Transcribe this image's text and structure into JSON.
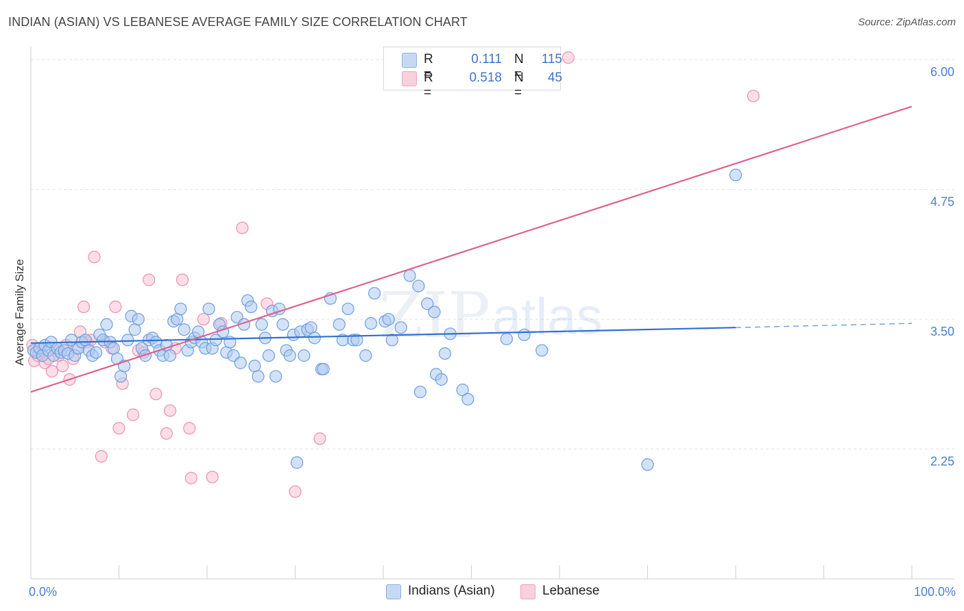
{
  "header": {
    "title": "INDIAN (ASIAN) VS LEBANESE AVERAGE FAMILY SIZE CORRELATION CHART",
    "source": "Source: ZipAtlas.com"
  },
  "legend": {
    "series1": {
      "r_label": "R =",
      "r_value": "0.111",
      "n_label": "N =",
      "n_value": "115"
    },
    "series2": {
      "r_label": "R =",
      "r_value": "0.518",
      "n_label": "N =",
      "n_value": "45"
    }
  },
  "bottom_legend": {
    "series1": "Indians (Asian)",
    "series2": "Lebanese"
  },
  "watermark": {
    "zip": "ZIP",
    "atlas": "atlas"
  },
  "colors": {
    "blue_fill": "#aecbf0",
    "blue_stroke": "#6c9ee0",
    "blue_line": "#2f6fd0",
    "pink_fill": "#f7c3d3",
    "pink_stroke": "#ec90ad",
    "pink_line": "#e0608b",
    "tick_text": "#4a7fd1"
  },
  "chart_data": {
    "type": "scatter",
    "title": "INDIAN (ASIAN) VS LEBANESE AVERAGE FAMILY SIZE CORRELATION CHART",
    "xlabel": "",
    "ylabel": "Average Family Size",
    "xlim": [
      0,
      100
    ],
    "ylim": [
      1.0,
      6.1
    ],
    "x_tick_labels": [
      "0.0%",
      "100.0%"
    ],
    "y_ticks": [
      2.25,
      3.5,
      4.75,
      6.0
    ],
    "y_tick_labels": [
      "2.25",
      "3.50",
      "4.75",
      "6.00"
    ],
    "grid": true,
    "series": [
      {
        "name": "Indians (Asian)",
        "color": "#6c9ee0",
        "r": 0.111,
        "n": 115,
        "trend": {
          "x": [
            0,
            80
          ],
          "y": [
            3.27,
            3.42
          ],
          "dashed_extension_to_x": 100,
          "dashed_end_y": 3.46
        },
        "points": [
          [
            0.3,
            3.2
          ],
          [
            0.6,
            3.18
          ],
          [
            1.0,
            3.22
          ],
          [
            1.3,
            3.15
          ],
          [
            1.6,
            3.25
          ],
          [
            2.0,
            3.2
          ],
          [
            2.3,
            3.28
          ],
          [
            2.6,
            3.15
          ],
          [
            3.0,
            3.22
          ],
          [
            3.4,
            3.18
          ],
          [
            3.8,
            3.2
          ],
          [
            4.2,
            3.17
          ],
          [
            4.6,
            3.3
          ],
          [
            5.0,
            3.15
          ],
          [
            5.4,
            3.22
          ],
          [
            5.8,
            3.28
          ],
          [
            6.2,
            3.3
          ],
          [
            6.6,
            3.2
          ],
          [
            7.0,
            3.15
          ],
          [
            7.4,
            3.18
          ],
          [
            7.8,
            3.35
          ],
          [
            8.2,
            3.3
          ],
          [
            8.6,
            3.45
          ],
          [
            9.0,
            3.28
          ],
          [
            9.4,
            3.22
          ],
          [
            9.8,
            3.12
          ],
          [
            10.2,
            2.95
          ],
          [
            10.6,
            3.05
          ],
          [
            11.0,
            3.3
          ],
          [
            11.4,
            3.53
          ],
          [
            11.8,
            3.4
          ],
          [
            12.2,
            3.5
          ],
          [
            12.6,
            3.22
          ],
          [
            13.0,
            3.15
          ],
          [
            13.4,
            3.3
          ],
          [
            13.8,
            3.32
          ],
          [
            14.2,
            3.28
          ],
          [
            14.6,
            3.2
          ],
          [
            15.0,
            3.15
          ],
          [
            15.4,
            3.25
          ],
          [
            15.8,
            3.15
          ],
          [
            16.2,
            3.48
          ],
          [
            16.6,
            3.5
          ],
          [
            17.0,
            3.6
          ],
          [
            17.4,
            3.4
          ],
          [
            17.8,
            3.2
          ],
          [
            18.2,
            3.28
          ],
          [
            18.6,
            3.32
          ],
          [
            19.0,
            3.38
          ],
          [
            19.4,
            3.28
          ],
          [
            19.8,
            3.22
          ],
          [
            20.2,
            3.6
          ],
          [
            20.6,
            3.22
          ],
          [
            21.0,
            3.3
          ],
          [
            21.4,
            3.45
          ],
          [
            21.8,
            3.38
          ],
          [
            22.2,
            3.18
          ],
          [
            22.6,
            3.28
          ],
          [
            23.0,
            3.15
          ],
          [
            23.4,
            3.52
          ],
          [
            23.8,
            3.08
          ],
          [
            24.2,
            3.45
          ],
          [
            24.6,
            3.68
          ],
          [
            25.0,
            3.62
          ],
          [
            25.4,
            3.05
          ],
          [
            25.8,
            2.95
          ],
          [
            26.2,
            3.45
          ],
          [
            26.6,
            3.32
          ],
          [
            27.0,
            3.15
          ],
          [
            27.4,
            3.58
          ],
          [
            27.8,
            2.95
          ],
          [
            28.2,
            3.6
          ],
          [
            28.6,
            3.45
          ],
          [
            29.0,
            3.2
          ],
          [
            29.4,
            3.15
          ],
          [
            29.8,
            3.35
          ],
          [
            30.2,
            2.12
          ],
          [
            30.6,
            3.38
          ],
          [
            31.0,
            3.15
          ],
          [
            31.4,
            3.4
          ],
          [
            31.8,
            3.42
          ],
          [
            32.2,
            3.32
          ],
          [
            33.0,
            3.02
          ],
          [
            33.2,
            3.02
          ],
          [
            34.0,
            3.7
          ],
          [
            35.0,
            3.45
          ],
          [
            35.4,
            3.3
          ],
          [
            36.0,
            3.6
          ],
          [
            36.6,
            3.3
          ],
          [
            37.0,
            3.3
          ],
          [
            38.0,
            3.15
          ],
          [
            38.6,
            3.46
          ],
          [
            39.0,
            3.75
          ],
          [
            40.2,
            3.48
          ],
          [
            40.6,
            3.5
          ],
          [
            41.0,
            3.3
          ],
          [
            42.0,
            3.42
          ],
          [
            43.0,
            3.92
          ],
          [
            44.0,
            3.82
          ],
          [
            44.2,
            2.8
          ],
          [
            45.0,
            3.65
          ],
          [
            45.8,
            3.57
          ],
          [
            46.0,
            2.97
          ],
          [
            46.6,
            2.92
          ],
          [
            47.0,
            3.17
          ],
          [
            47.6,
            3.36
          ],
          [
            49.0,
            2.82
          ],
          [
            49.6,
            2.73
          ],
          [
            54.0,
            3.31
          ],
          [
            56.0,
            3.35
          ],
          [
            58.0,
            3.2
          ],
          [
            70.0,
            2.1
          ],
          [
            80.0,
            4.89
          ]
        ]
      },
      {
        "name": "Lebanese",
        "color": "#ec90ad",
        "r": 0.518,
        "n": 45,
        "trend": {
          "x": [
            0,
            100
          ],
          "y": [
            2.8,
            5.55
          ]
        },
        "points": [
          [
            0.2,
            3.25
          ],
          [
            0.4,
            3.1
          ],
          [
            0.8,
            3.15
          ],
          [
            1.2,
            3.2
          ],
          [
            1.6,
            3.08
          ],
          [
            2.0,
            3.12
          ],
          [
            2.4,
            3.0
          ],
          [
            2.8,
            3.2
          ],
          [
            3.2,
            3.15
          ],
          [
            3.6,
            3.05
          ],
          [
            4.0,
            3.25
          ],
          [
            4.4,
            2.92
          ],
          [
            4.8,
            3.12
          ],
          [
            5.2,
            3.22
          ],
          [
            5.6,
            3.38
          ],
          [
            6.0,
            3.62
          ],
          [
            6.4,
            3.28
          ],
          [
            6.8,
            3.3
          ],
          [
            7.2,
            4.1
          ],
          [
            8.0,
            2.18
          ],
          [
            8.4,
            3.28
          ],
          [
            9.2,
            3.22
          ],
          [
            9.6,
            3.62
          ],
          [
            10.0,
            2.45
          ],
          [
            10.4,
            2.88
          ],
          [
            11.6,
            2.58
          ],
          [
            12.2,
            3.2
          ],
          [
            12.8,
            3.18
          ],
          [
            13.4,
            3.88
          ],
          [
            14.2,
            2.78
          ],
          [
            15.4,
            2.4
          ],
          [
            15.8,
            2.62
          ],
          [
            16.4,
            3.22
          ],
          [
            17.2,
            3.88
          ],
          [
            18.0,
            2.45
          ],
          [
            18.2,
            1.97
          ],
          [
            19.6,
            3.5
          ],
          [
            20.6,
            1.98
          ],
          [
            21.6,
            3.46
          ],
          [
            24.0,
            4.38
          ],
          [
            26.8,
            3.65
          ],
          [
            30.0,
            1.84
          ],
          [
            32.8,
            2.35
          ],
          [
            61.0,
            6.02
          ],
          [
            82.0,
            5.65
          ]
        ]
      }
    ]
  }
}
